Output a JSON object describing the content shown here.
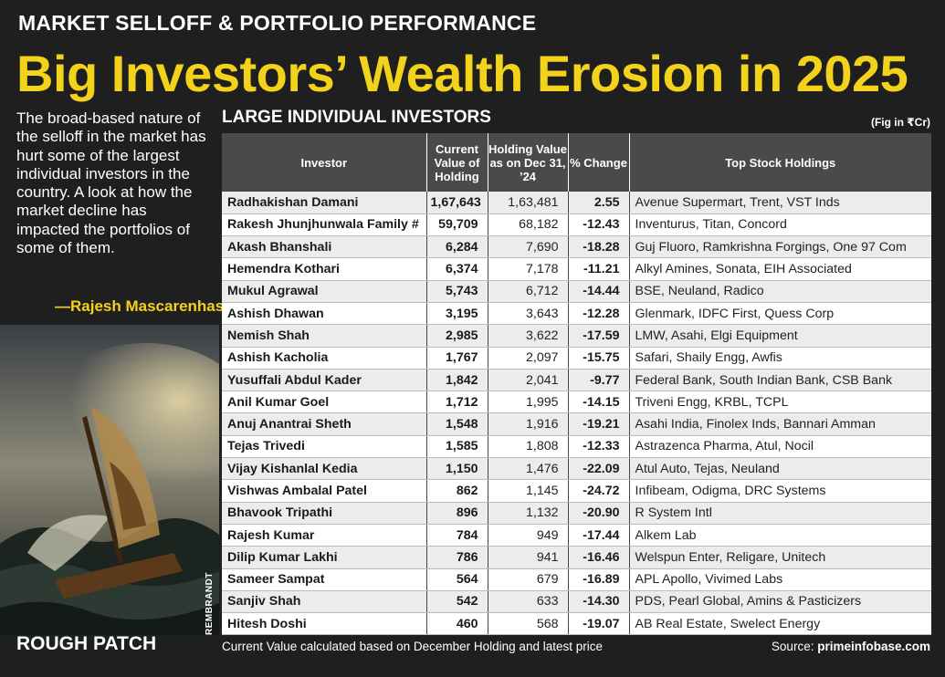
{
  "kicker": "MARKET SELLOFF & PORTFOLIO PERFORMANCE",
  "headline": "Big Investors’ Wealth Erosion in 2025",
  "intro": "The broad-based nature of the selloff in the market has hurt some of the largest individual investors in the country. A look at how the market decline has impacted the portfolios of some of them.",
  "byline": "—Rajesh Mascarenhas",
  "painting_credit": "REMBRANDT",
  "painting_caption": "ROUGH PATCH",
  "table": {
    "subhead": "LARGE INDIVIDUAL INVESTORS",
    "unit_note": "(Fig in ₹Cr)",
    "headers": {
      "investor": "Investor",
      "current": "Current Value of Holding",
      "previous": "Holding Value as on Dec 31, ’24",
      "change": "% Change",
      "top": "Top Stock Holdings"
    },
    "rows": [
      {
        "investor": "Radhakishan Damani",
        "current": "1,67,643",
        "previous": "1,63,481",
        "change": "2.55",
        "top": "Avenue Supermart, Trent, VST Inds"
      },
      {
        "investor": "Rakesh Jhunjhunwala Family #",
        "current": "59,709",
        "previous": "68,182",
        "change": "-12.43",
        "top": "Inventurus, Titan, Concord"
      },
      {
        "investor": "Akash Bhanshali",
        "current": "6,284",
        "previous": "7,690",
        "change": "-18.28",
        "top": "Guj Fluoro, Ramkrishna Forgings, One 97 Com"
      },
      {
        "investor": "Hemendra Kothari",
        "current": "6,374",
        "previous": "7,178",
        "change": "-11.21",
        "top": "Alkyl Amines, Sonata, EIH Associated"
      },
      {
        "investor": "Mukul Agrawal",
        "current": "5,743",
        "previous": "6,712",
        "change": "-14.44",
        "top": "BSE, Neuland, Radico"
      },
      {
        "investor": "Ashish Dhawan",
        "current": "3,195",
        "previous": "3,643",
        "change": "-12.28",
        "top": "Glenmark, IDFC First, Quess Corp"
      },
      {
        "investor": "Nemish Shah",
        "current": "2,985",
        "previous": "3,622",
        "change": "-17.59",
        "top": "LMW, Asahi, Elgi Equipment"
      },
      {
        "investor": "Ashish Kacholia",
        "current": "1,767",
        "previous": "2,097",
        "change": "-15.75",
        "top": "Safari, Shaily Engg, Awfis"
      },
      {
        "investor": "Yusuffali Abdul Kader",
        "current": "1,842",
        "previous": "2,041",
        "change": "-9.77",
        "top": "Federal Bank, South Indian Bank, CSB Bank"
      },
      {
        "investor": "Anil Kumar Goel",
        "current": "1,712",
        "previous": "1,995",
        "change": "-14.15",
        "top": "Triveni Engg, KRBL, TCPL"
      },
      {
        "investor": "Anuj Anantrai Sheth",
        "current": "1,548",
        "previous": "1,916",
        "change": "-19.21",
        "top": "Asahi India, Finolex Inds, Bannari Amman"
      },
      {
        "investor": "Tejas Trivedi",
        "current": "1,585",
        "previous": "1,808",
        "change": "-12.33",
        "top": "Astrazenca Pharma, Atul, Nocil"
      },
      {
        "investor": "Vijay Kishanlal Kedia",
        "current": "1,150",
        "previous": "1,476",
        "change": "-22.09",
        "top": "Atul Auto, Tejas, Neuland"
      },
      {
        "investor": "Vishwas Ambalal Patel",
        "current": "862",
        "previous": "1,145",
        "change": "-24.72",
        "top": "Infibeam, Odigma, DRC Systems"
      },
      {
        "investor": "Bhavook Tripathi",
        "current": "896",
        "previous": "1,132",
        "change": "-20.90",
        "top": "R System Intl"
      },
      {
        "investor": "Rajesh Kumar",
        "current": "784",
        "previous": "949",
        "change": "-17.44",
        "top": "Alkem Lab"
      },
      {
        "investor": "Dilip Kumar Lakhi",
        "current": "786",
        "previous": "941",
        "change": "-16.46",
        "top": "Welspun Enter, Religare, Unitech"
      },
      {
        "investor": "Sameer  Sampat",
        "current": "564",
        "previous": "679",
        "change": "-16.89",
        "top": "APL Apollo, Vivimed Labs"
      },
      {
        "investor": "Sanjiv Shah",
        "current": "542",
        "previous": "633",
        "change": "-14.30",
        "top": "PDS, Pearl Global, Amins & Pasticizers"
      },
      {
        "investor": "Hitesh Doshi",
        "current": "460",
        "previous": "568",
        "change": "-19.07",
        "top": "AB Real Estate, Swelect Energy"
      }
    ]
  },
  "footnote": "Current Value calculated based on December Holding and latest price",
  "source_label": "Source:",
  "source_name": "primeinfobase.com"
}
